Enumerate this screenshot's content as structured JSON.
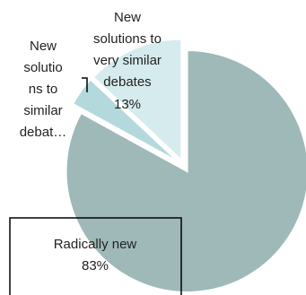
{
  "chart_data": {
    "type": "pie",
    "title": "",
    "slices": [
      {
        "label": "Radically new",
        "value": 83,
        "value_text": "83%",
        "color": "#9fb9b9"
      },
      {
        "label": "New solutions to similar debates",
        "value": 4,
        "value_text": "",
        "color": "#b4d9dd"
      },
      {
        "label": "New solutions to very similar debates",
        "value": 13,
        "value_text": "13%",
        "color": "#d5ebee"
      }
    ],
    "label_text": {
      "radically_new": [
        "Radically new",
        "83%"
      ],
      "similar": [
        "New",
        "solutio",
        "ns to",
        "similar",
        "debat…"
      ],
      "very_similar": [
        "New",
        "solutions to",
        "very similar",
        "debates",
        "13%"
      ]
    },
    "legend": "none",
    "exploded": true
  }
}
